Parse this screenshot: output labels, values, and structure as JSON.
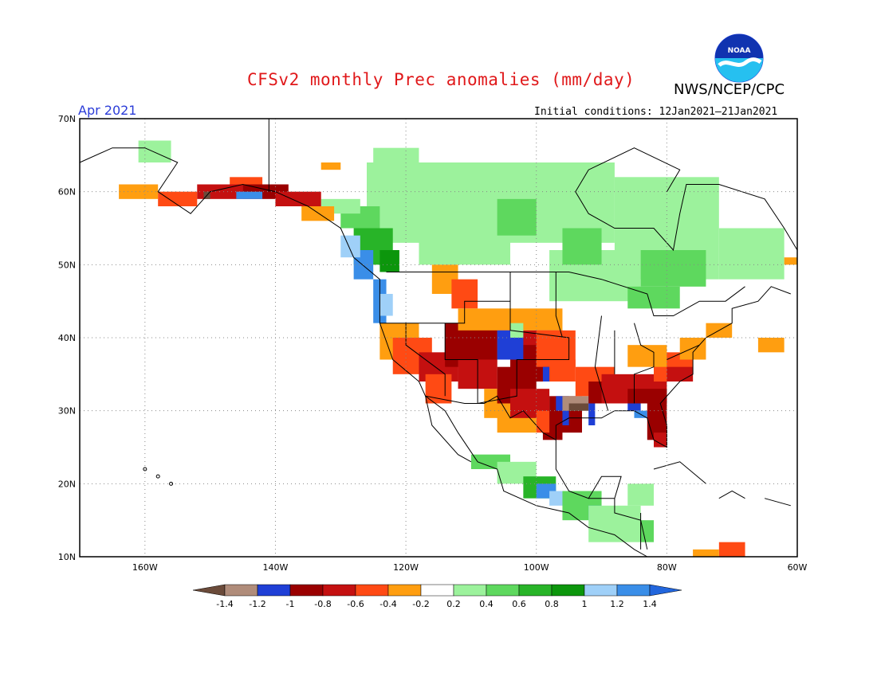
{
  "header": {
    "title": "CFSv2 monthly Prec anomalies (mm/day)",
    "agency": "NWS/NCEP/CPC",
    "month": "Apr 2021",
    "initial_conditions": "Initial conditions: 12Jan2021–21Jan2021",
    "logo_text": "NOAA"
  },
  "map": {
    "lat_labels": [
      "70N",
      "60N",
      "50N",
      "40N",
      "30N",
      "20N",
      "10N"
    ],
    "lon_labels": [
      "160W",
      "140W",
      "120W",
      "100W",
      "80W",
      "60W"
    ],
    "lat_range": [
      10,
      70
    ],
    "lon_range": [
      -170,
      -60
    ],
    "grid": "dotted"
  },
  "colorbar": {
    "labels": [
      "-1.4",
      "-1.2",
      "-1",
      "-0.8",
      "-0.6",
      "-0.4",
      "-0.2",
      "0.2",
      "0.4",
      "0.6",
      "0.8",
      "1",
      "1.2",
      "1.4"
    ],
    "colors": [
      "#6b4b3a",
      "#b08c7a",
      "#1f3fd6",
      "#9a0000",
      "#c41010",
      "#ff4a14",
      "#ff9e10",
      "#ffffff",
      "#9cf29c",
      "#5ed85e",
      "#28b428",
      "#0c960c",
      "#9fd0f8",
      "#3a8ee8",
      "#2266dd"
    ]
  },
  "palette": {
    "brown": "#6b4b3a",
    "tan": "#b08c7a",
    "blue": "#1f3fd6",
    "darkred": "#9a0000",
    "red": "#c41010",
    "orange_red": "#ff4a14",
    "orange": "#ff9e10",
    "lightgreen": "#9cf29c",
    "green": "#5ed85e",
    "midgreen": "#28b428",
    "darkgreen": "#0c960c",
    "lightblue": "#9fd0f8",
    "midblue": "#3a8ee8"
  }
}
